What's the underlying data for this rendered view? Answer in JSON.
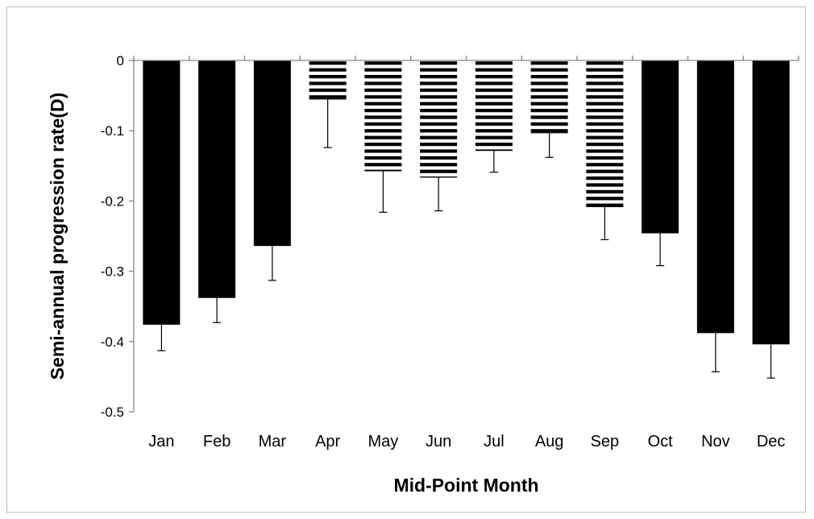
{
  "chart_data": {
    "type": "bar",
    "title": "",
    "xlabel": "Mid-Point Month",
    "ylabel": "Semi-annual progression  rate(D)",
    "categories": [
      "Jan",
      "Feb",
      "Mar",
      "Apr",
      "May",
      "Jun",
      "Jul",
      "Aug",
      "Sep",
      "Oct",
      "Nov",
      "Dec"
    ],
    "values": [
      -0.376,
      -0.338,
      -0.264,
      -0.055,
      -0.157,
      -0.166,
      -0.128,
      -0.103,
      -0.208,
      -0.246,
      -0.388,
      -0.404
    ],
    "error_bars": [
      0.037,
      0.035,
      0.049,
      0.069,
      0.059,
      0.048,
      0.031,
      0.035,
      0.047,
      0.046,
      0.055,
      0.048
    ],
    "styles": [
      "solid",
      "solid",
      "solid",
      "striped",
      "striped",
      "striped",
      "striped",
      "striped",
      "striped",
      "solid",
      "solid",
      "solid"
    ],
    "ylim": [
      -0.5,
      0
    ],
    "yticks": [
      0,
      -0.1,
      -0.2,
      -0.3,
      -0.4,
      -0.5
    ],
    "ytick_labels": [
      "0",
      "-0.1",
      "-0.2",
      "-0.3",
      "-0.4",
      "-0.5"
    ],
    "grid": false,
    "legend": false,
    "colors": {
      "bar": "#000000",
      "axis": "#868686",
      "error": "#000000"
    }
  }
}
